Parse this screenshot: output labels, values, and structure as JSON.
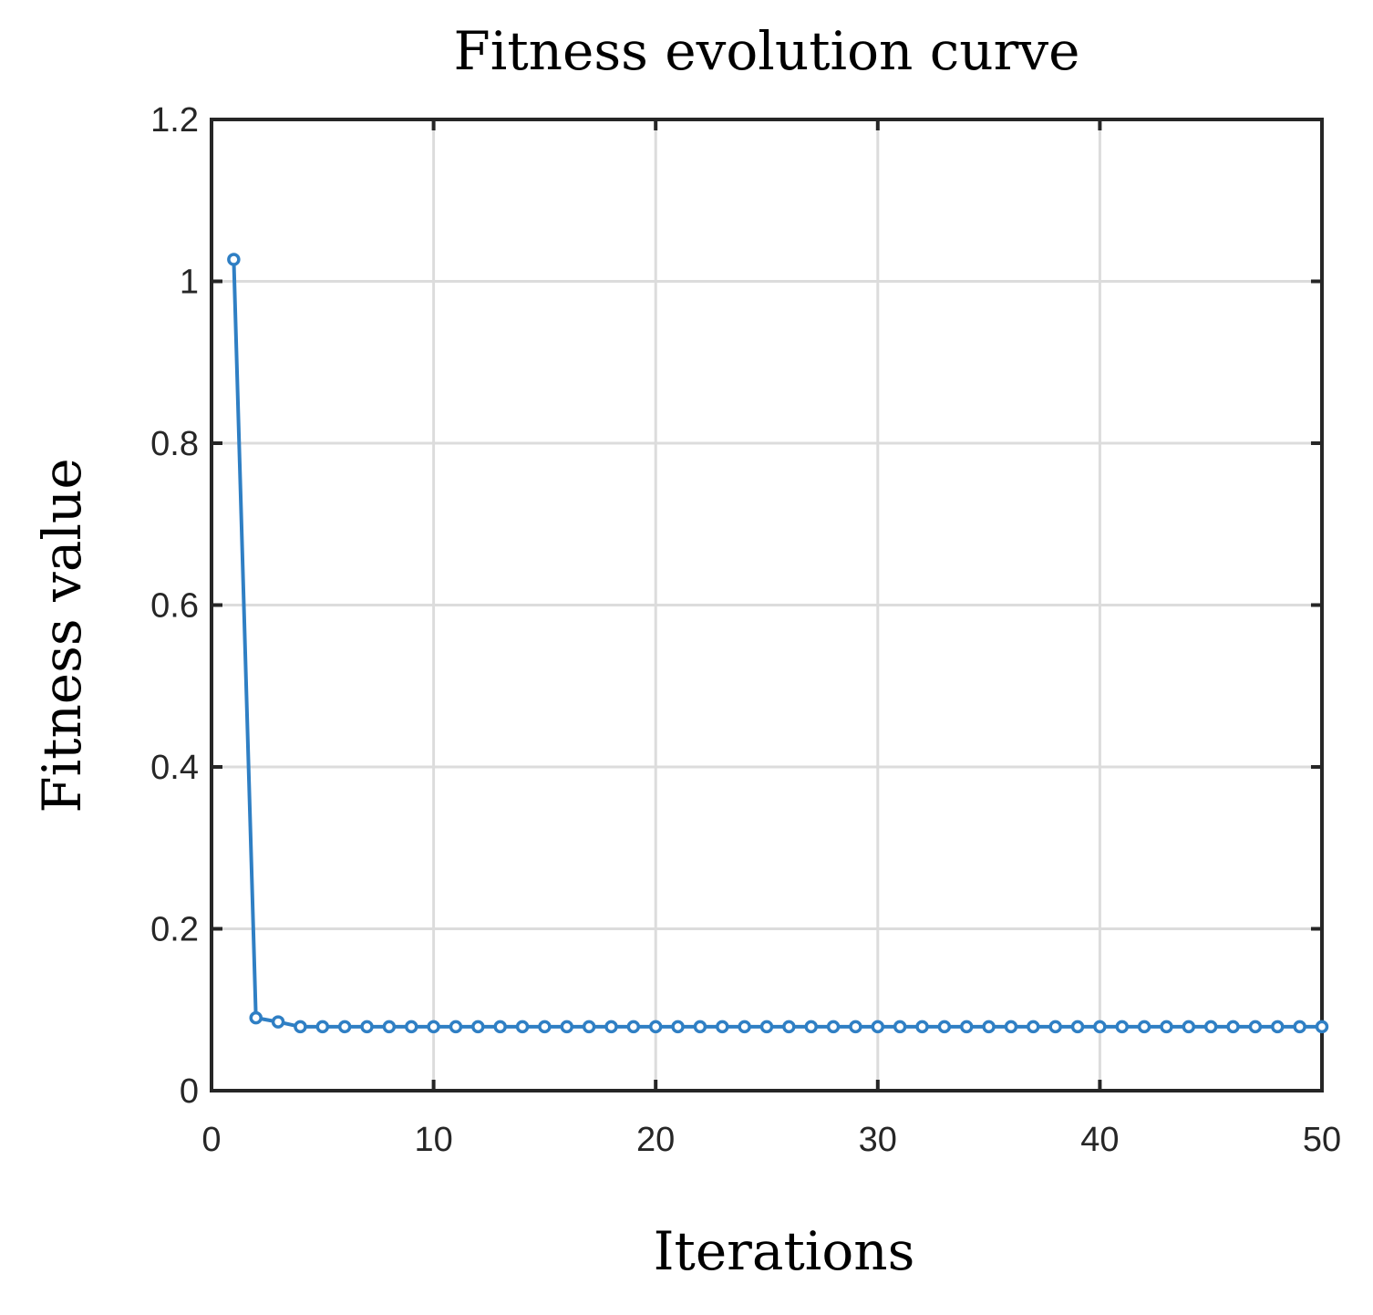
{
  "chart_data": {
    "type": "line",
    "title": "Fitness evolution curve",
    "xlabel": "Iterations",
    "ylabel": "Fitness value",
    "xlim": [
      0,
      50
    ],
    "ylim": [
      0,
      1.2
    ],
    "xticks": [
      0,
      10,
      20,
      30,
      40,
      50
    ],
    "yticks": [
      0,
      0.2,
      0.4,
      0.6,
      0.8,
      1,
      1.2
    ],
    "xtick_labels": [
      "0",
      "10",
      "20",
      "30",
      "40",
      "50"
    ],
    "ytick_labels": [
      "0",
      "0.2",
      "0.4",
      "0.6",
      "0.8",
      "1",
      "1.2"
    ],
    "grid": true,
    "legend": "none",
    "series": [
      {
        "color": "#2f7fc4",
        "marker": "circle",
        "x": [
          1,
          2,
          3,
          4,
          5,
          6,
          7,
          8,
          9,
          10,
          11,
          12,
          13,
          14,
          15,
          16,
          17,
          18,
          19,
          20,
          21,
          22,
          23,
          24,
          25,
          26,
          27,
          28,
          29,
          30,
          31,
          32,
          33,
          34,
          35,
          36,
          37,
          38,
          39,
          40,
          41,
          42,
          43,
          44,
          45,
          46,
          47,
          48,
          49,
          50
        ],
        "y": [
          1.027,
          0.09,
          0.085,
          0.079,
          0.079,
          0.079,
          0.079,
          0.079,
          0.079,
          0.079,
          0.079,
          0.079,
          0.079,
          0.079,
          0.079,
          0.079,
          0.079,
          0.079,
          0.079,
          0.079,
          0.079,
          0.079,
          0.079,
          0.079,
          0.079,
          0.079,
          0.079,
          0.079,
          0.079,
          0.079,
          0.079,
          0.079,
          0.079,
          0.079,
          0.079,
          0.079,
          0.079,
          0.079,
          0.079,
          0.079,
          0.079,
          0.079,
          0.079,
          0.079,
          0.079,
          0.079,
          0.079,
          0.079,
          0.079,
          0.079
        ]
      }
    ]
  }
}
